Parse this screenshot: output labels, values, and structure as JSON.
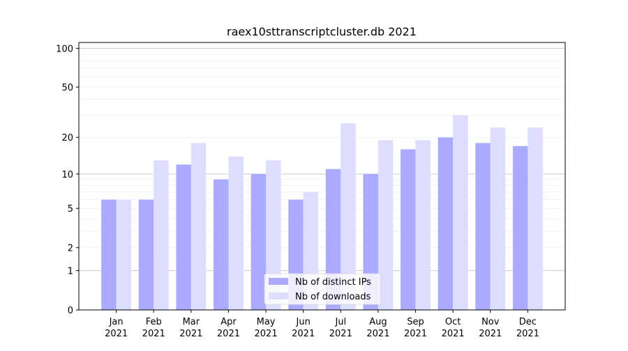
{
  "chart_data": {
    "type": "bar",
    "title": "raex10sttranscriptcluster.db 2021",
    "categories": [
      "Jan 2021",
      "Feb 2021",
      "Mar 2021",
      "Apr 2021",
      "May 2021",
      "Jun 2021",
      "Jul 2021",
      "Aug 2021",
      "Sep 2021",
      "Oct 2021",
      "Nov 2021",
      "Dec 2021"
    ],
    "series": [
      {
        "name": "Nb of distinct IPs",
        "color": "#aaaaff",
        "values": [
          6,
          6,
          12,
          9,
          10,
          6,
          11,
          10,
          16,
          20,
          18,
          17
        ]
      },
      {
        "name": "Nb of downloads",
        "color": "#ddddff",
        "values": [
          6,
          13,
          18,
          14,
          13,
          7,
          26,
          19,
          19,
          30,
          24,
          24
        ]
      }
    ],
    "yscale": "log1p",
    "ylim": [
      0,
      111
    ],
    "yticks": [
      0,
      1,
      2,
      5,
      10,
      20,
      50,
      100
    ],
    "major_grid": [
      1,
      10,
      100
    ],
    "minor_grid": [
      2,
      3,
      4,
      5,
      6,
      7,
      8,
      9,
      20,
      30,
      40,
      50,
      60,
      70,
      80,
      90
    ],
    "legend": "lower center"
  }
}
